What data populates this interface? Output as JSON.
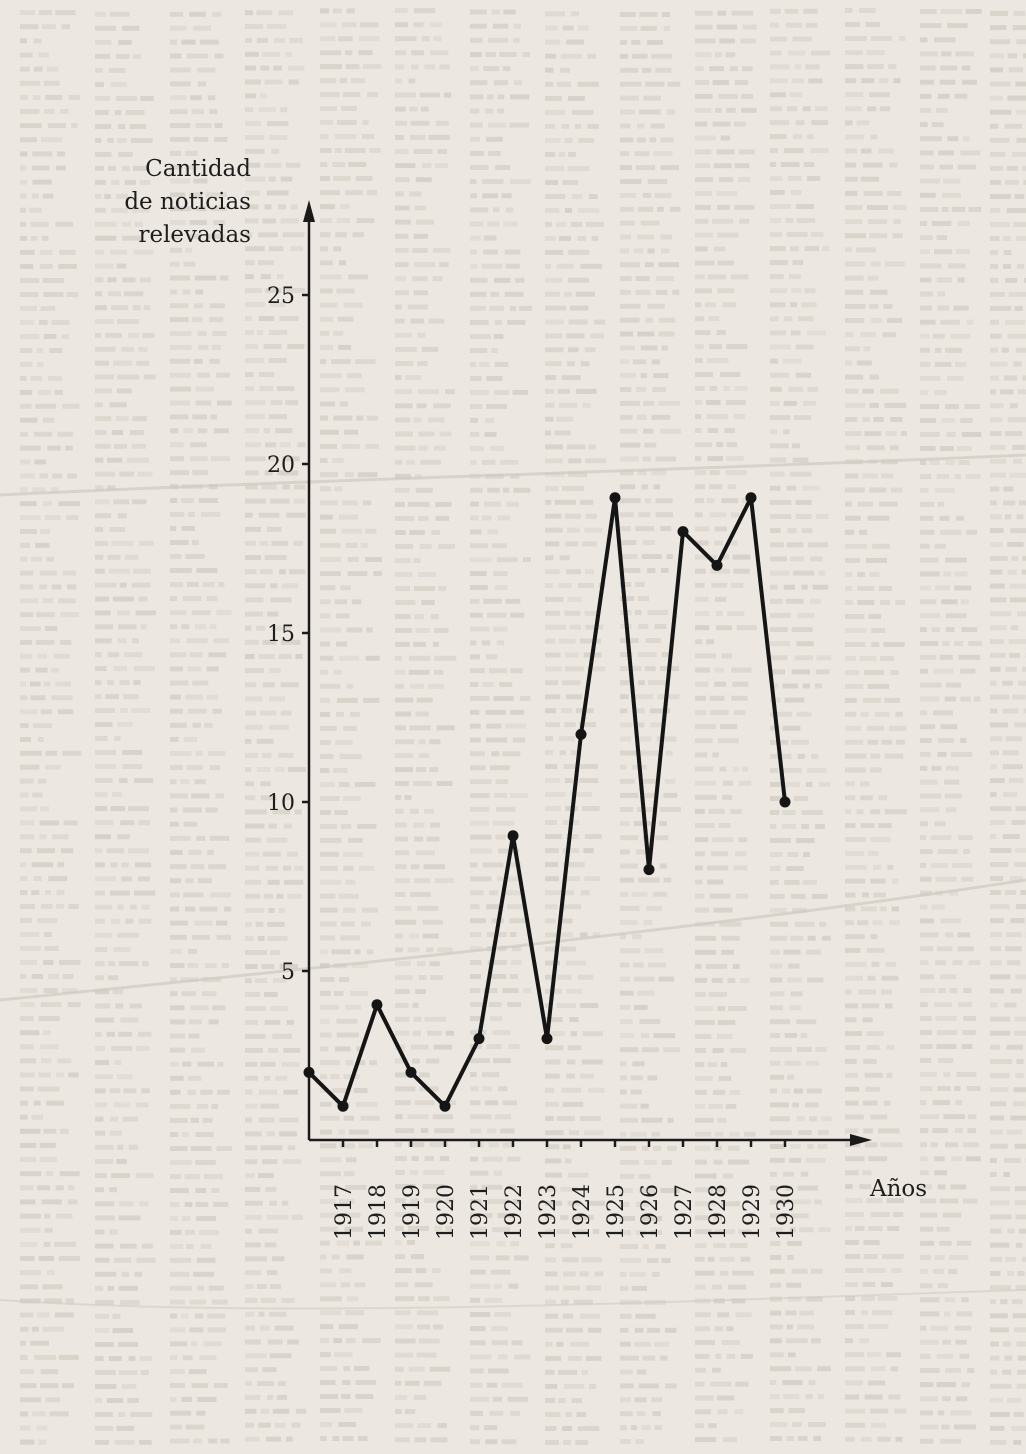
{
  "chart_data": {
    "type": "line",
    "ylabel_lines": [
      "Cantidad",
      "de noticias",
      "relevadas"
    ],
    "xlabel": "Años",
    "x": [
      1916,
      1917,
      1918,
      1919,
      1920,
      1921,
      1922,
      1923,
      1924,
      1925,
      1926,
      1927,
      1928,
      1929,
      1930
    ],
    "x_tick_labels": [
      "1917",
      "1918",
      "1919",
      "1920",
      "1921",
      "1922",
      "1923",
      "1924",
      "1925",
      "1926",
      "1927",
      "1928",
      "1929",
      "1930"
    ],
    "series": [
      {
        "values": [
          2,
          1,
          4,
          2,
          1,
          3,
          9,
          3,
          12,
          19,
          8,
          18,
          17,
          19,
          10
        ]
      }
    ],
    "y_ticks": [
      5,
      10,
      15,
      20,
      25
    ],
    "ylim": [
      0,
      27
    ],
    "xlim": [
      1916,
      1932
    ],
    "grid": false,
    "legend": "none",
    "colors": {
      "line": "#151515",
      "axis": "#1a1a1a",
      "text": "#1e1e1e",
      "background": "#ece8e1"
    }
  }
}
